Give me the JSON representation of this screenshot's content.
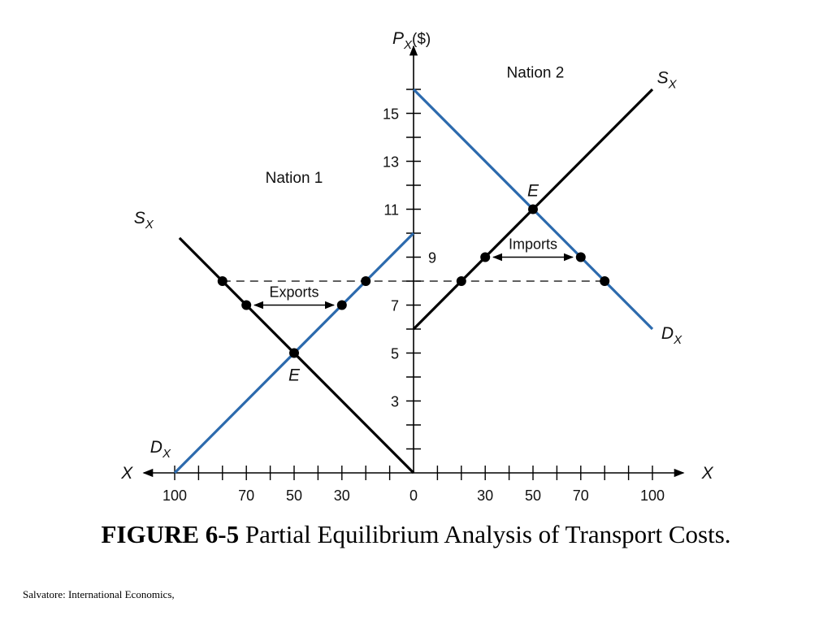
{
  "caption": {
    "figure_number": "FIGURE 6-5",
    "text": "Partial Equilibrium Analysis of Transport Costs."
  },
  "source": "Salvatore: International Economics,",
  "colors": {
    "demand": "#2c6aad",
    "supply": "#000000",
    "axis": "#000000"
  },
  "chart_data": {
    "type": "line",
    "title": "",
    "ylabel": {
      "main": "P",
      "sub": "X",
      "unit": "($)"
    },
    "xlabel_left": "X",
    "xlabel_right": "X",
    "ylim": [
      0,
      16
    ],
    "xlim_each_side": [
      0,
      100
    ],
    "y_tick_labels": [
      3,
      5,
      7,
      9,
      11,
      13,
      15
    ],
    "x_tick_labels_left": [
      100,
      70,
      50,
      30,
      0
    ],
    "x_tick_labels_right": [
      30,
      50,
      70,
      100
    ],
    "nation_labels": [
      "Nation 1",
      "Nation 2"
    ],
    "panels": [
      {
        "name": "Nation 1",
        "side": "left",
        "series": [
          {
            "name": "D",
            "sub": "X",
            "kind": "demand",
            "points": [
              [
                100,
                0
              ],
              [
                0,
                10
              ]
            ]
          },
          {
            "name": "S",
            "sub": "X",
            "kind": "supply",
            "points": [
              [
                0,
                0
              ],
              [
                100,
                10
              ]
            ]
          }
        ],
        "markers": [
          [
            80,
            8
          ],
          [
            70,
            7
          ],
          [
            30,
            7
          ],
          [
            20,
            8
          ],
          [
            50,
            5
          ]
        ],
        "equilibrium": {
          "label": "E",
          "x": 50,
          "y": 5
        },
        "arrow": {
          "label": "Exports",
          "y": 7,
          "x_from": 70,
          "x_to": 30
        }
      },
      {
        "name": "Nation 2",
        "side": "right",
        "series": [
          {
            "name": "D",
            "sub": "X",
            "kind": "demand",
            "points": [
              [
                0,
                16
              ],
              [
                100,
                6
              ]
            ]
          },
          {
            "name": "S",
            "sub": "X",
            "kind": "supply",
            "points": [
              [
                0,
                6
              ],
              [
                100,
                16
              ]
            ]
          }
        ],
        "markers": [
          [
            20,
            8
          ],
          [
            30,
            9
          ],
          [
            70,
            9
          ],
          [
            80,
            8
          ],
          [
            50,
            11
          ]
        ],
        "equilibrium": {
          "label": "E",
          "x": 50,
          "y": 11
        },
        "arrow": {
          "label": "Imports",
          "y": 9,
          "x_from": 30,
          "x_to": 70
        }
      }
    ],
    "dashed_price_line": 8
  }
}
